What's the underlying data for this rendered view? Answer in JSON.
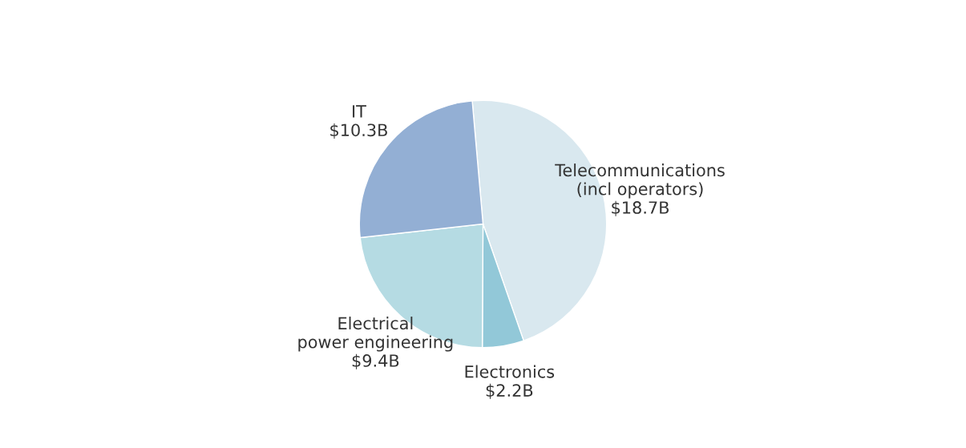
{
  "chart_data": {
    "type": "pie",
    "categories": [
      "Telecommunications\n(incl operators)",
      "Electronics",
      "Electrical\npower engineering",
      "IT"
    ],
    "values": [
      18.7,
      2.2,
      9.4,
      10.3
    ],
    "value_labels": [
      "$18.7B",
      "$2.2B",
      "$9.4B",
      "$10.3B"
    ],
    "colors": [
      "#d9e8ef",
      "#92c8d8",
      "#b5dbe3",
      "#93afd4"
    ],
    "legend": false
  }
}
